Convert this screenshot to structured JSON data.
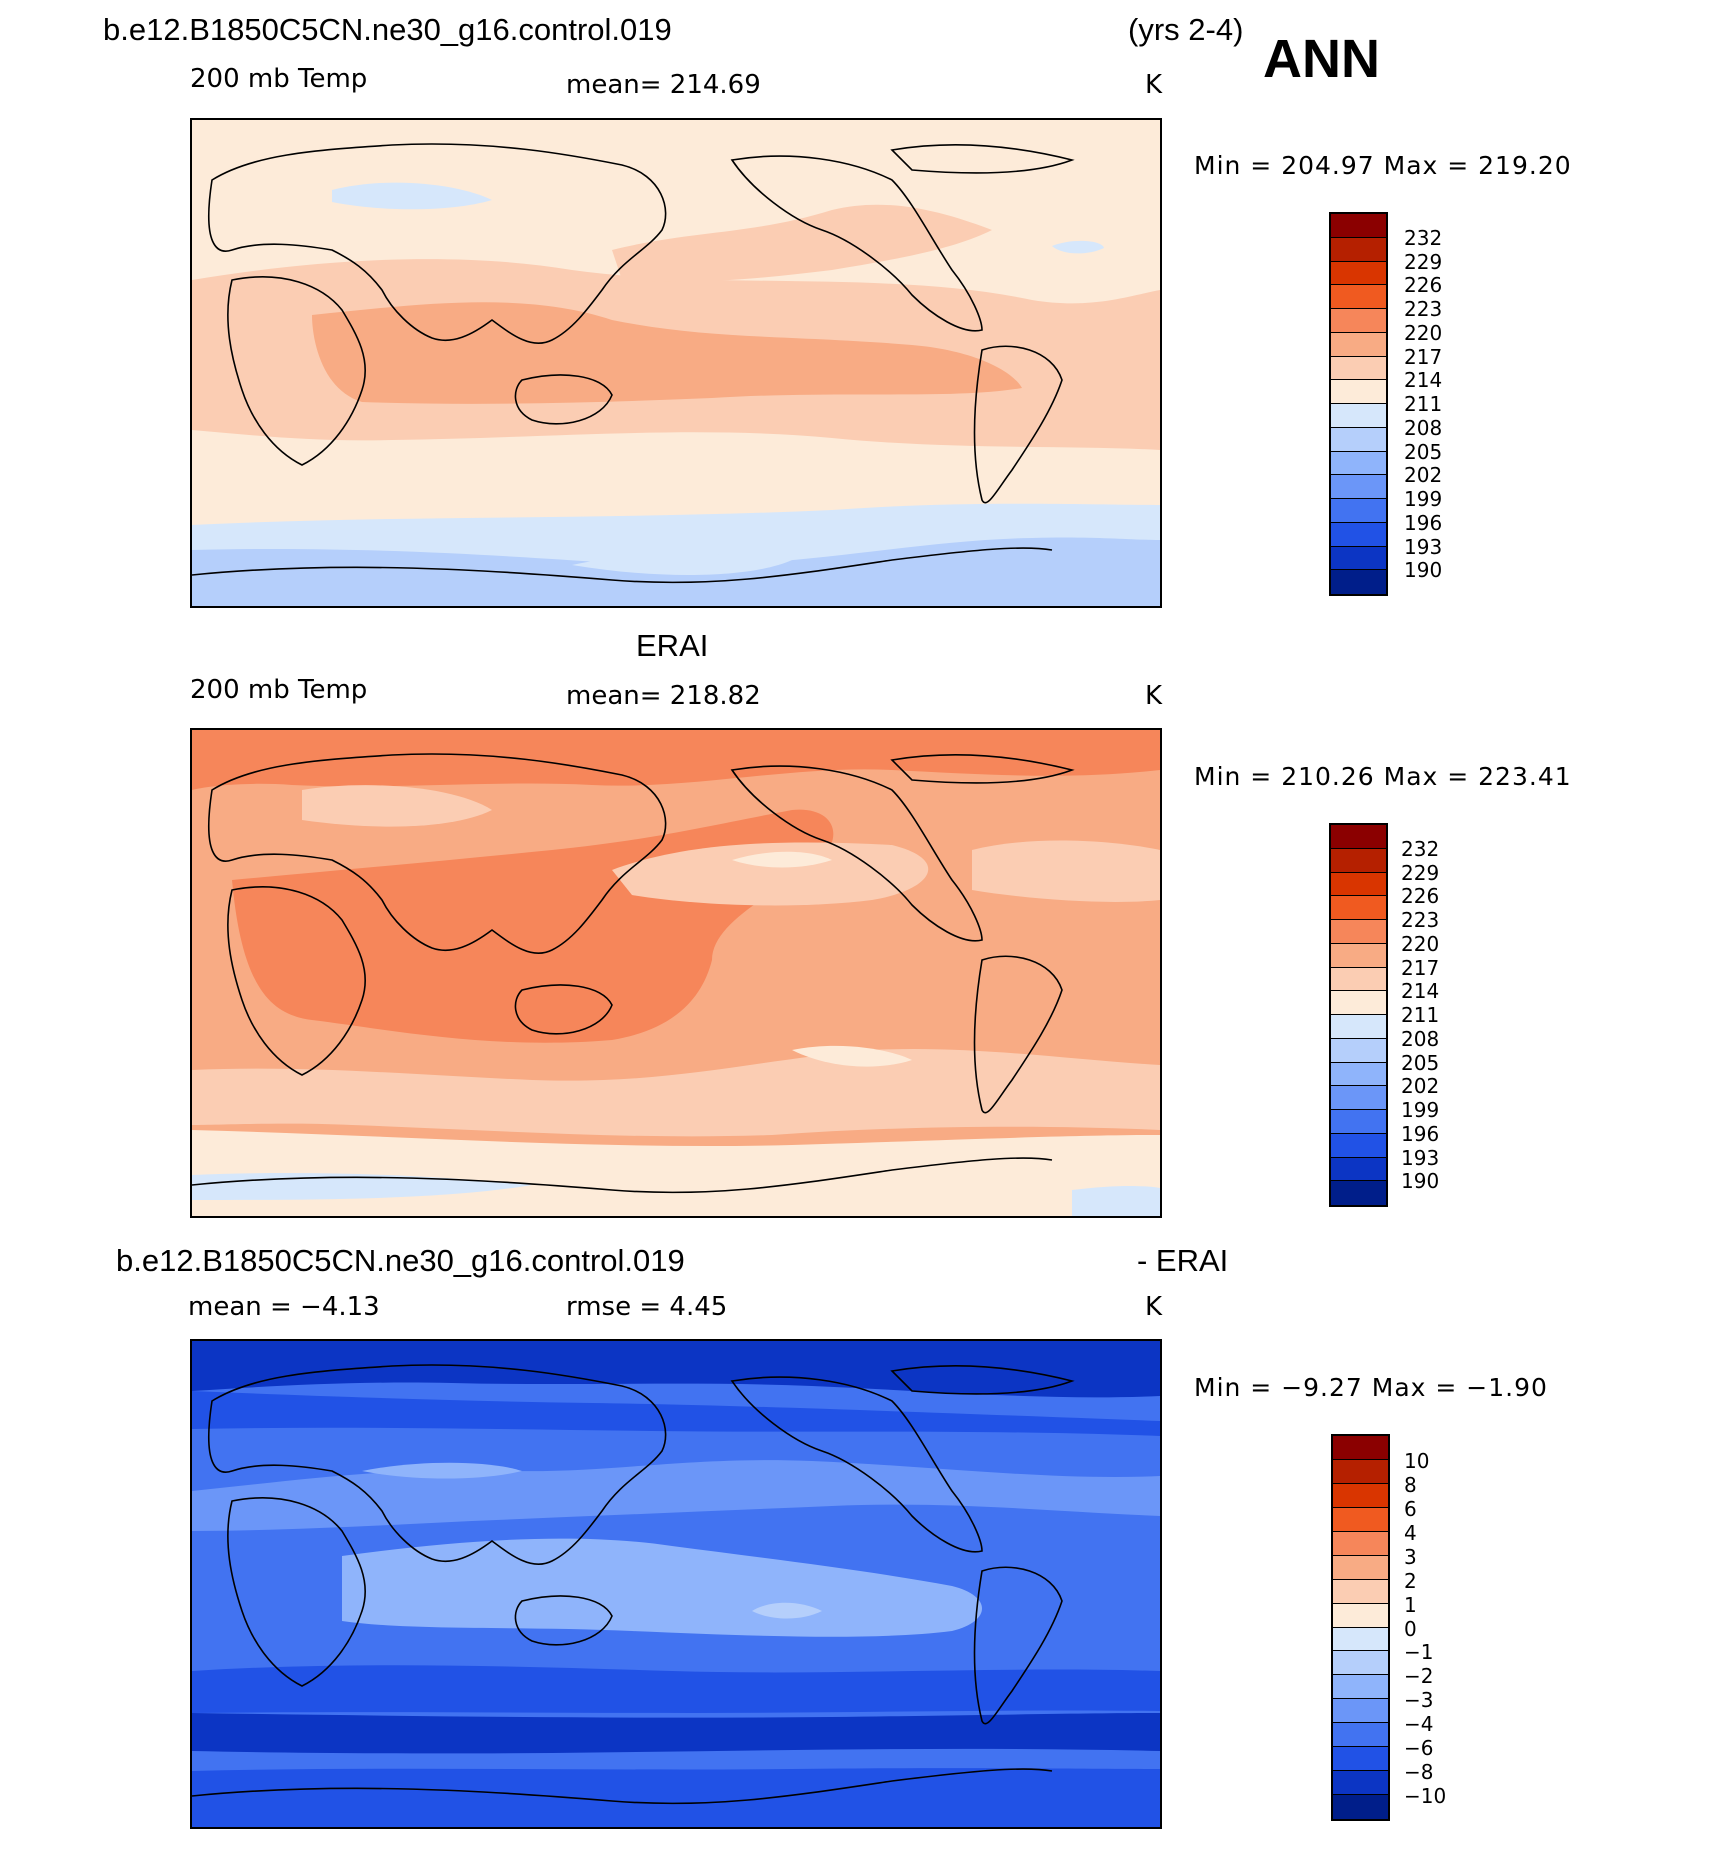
{
  "header": {
    "case_name": "b.e12.B1850C5CN.ne30_g16.control.019",
    "years": "(yrs 2-4)",
    "season": "ANN"
  },
  "panels": [
    {
      "id": "model",
      "title": "",
      "left_label": "200 mb Temp",
      "center_label": "mean=  214.69",
      "units": "K",
      "minmax": "Min  =  204.97  Max  =  219.20"
    },
    {
      "id": "obs",
      "title": "ERAI",
      "left_label": "200 mb Temp",
      "center_label": "mean=  218.82",
      "units": "K",
      "minmax": "Min  =  210.26  Max  =  223.41"
    },
    {
      "id": "diff",
      "title_left": "b.e12.B1850C5CN.ne30_g16.control.019",
      "title_right": "- ERAI",
      "left_label": "mean =    −4.13",
      "center_label": "rmse =     4.45",
      "units": "K",
      "minmax": "Min  =    −9.27  Max  =   −1.90"
    }
  ],
  "colorbar_abs": {
    "levels": [
      "232",
      "229",
      "226",
      "223",
      "220",
      "217",
      "214",
      "211",
      "208",
      "205",
      "202",
      "199",
      "196",
      "193",
      "190"
    ],
    "colors": [
      "#8b0000",
      "#b52000",
      "#d93500",
      "#f05a20",
      "#f6865a",
      "#f8ab84",
      "#fbcdb3",
      "#fdebd9",
      "#d6e7fb",
      "#b5cffb",
      "#8fb4fb",
      "#6b96f8",
      "#4273f1",
      "#2152e6",
      "#0c35c4",
      "#001e8a"
    ]
  },
  "colorbar_diff": {
    "levels": [
      "10",
      "8",
      "6",
      "4",
      "3",
      "2",
      "1",
      "0",
      "−1",
      "−2",
      "−3",
      "−4",
      "−6",
      "−8",
      "−10"
    ],
    "colors": [
      "#8b0000",
      "#b52000",
      "#d93500",
      "#f05a20",
      "#f6865a",
      "#f8ab84",
      "#fbcdb3",
      "#fdebd9",
      "#d6e7fb",
      "#b5cffb",
      "#8fb4fb",
      "#6b96f8",
      "#4273f1",
      "#2152e6",
      "#0c35c4",
      "#001e8a"
    ]
  },
  "chart_data": [
    {
      "type": "heatmap",
      "title": "",
      "variable": "200 mb Temp",
      "units": "K",
      "mean": 214.69,
      "min": 204.97,
      "max": 219.2,
      "contour_levels": [
        190,
        193,
        196,
        199,
        202,
        205,
        208,
        211,
        214,
        217,
        220,
        223,
        226,
        229,
        232
      ],
      "xlim": [
        30,
        390
      ],
      "ylim": [
        -90,
        90
      ],
      "zonal_bands": [
        {
          "lat": [
            60,
            90
          ],
          "value": 212.5
        },
        {
          "lat": [
            30,
            60
          ],
          "value": 213.5
        },
        {
          "lat": [
            -30,
            30
          ],
          "value": 217.5
        },
        {
          "lat": [
            -55,
            -30
          ],
          "value": 213.5
        },
        {
          "lat": [
            -65,
            -55
          ],
          "value": 210
        },
        {
          "lat": [
            -90,
            -65
          ],
          "value": 207
        }
      ]
    },
    {
      "type": "heatmap",
      "title": "ERAI",
      "variable": "200 mb Temp",
      "units": "K",
      "mean": 218.82,
      "min": 210.26,
      "max": 223.41,
      "contour_levels": [
        190,
        193,
        196,
        199,
        202,
        205,
        208,
        211,
        214,
        217,
        220,
        223,
        226,
        229,
        232
      ],
      "xlim": [
        30,
        390
      ],
      "ylim": [
        -90,
        90
      ],
      "zonal_bands": [
        {
          "lat": [
            65,
            90
          ],
          "value": 221
        },
        {
          "lat": [
            35,
            65
          ],
          "value": 216
        },
        {
          "lat": [
            -35,
            35
          ],
          "value": 220
        },
        {
          "lat": [
            -60,
            -35
          ],
          "value": 218
        },
        {
          "lat": [
            -75,
            -60
          ],
          "value": 213
        },
        {
          "lat": [
            -90,
            -75
          ],
          "value": 210
        }
      ]
    },
    {
      "type": "heatmap",
      "title": "- ERAI",
      "variable": "200 mb Temp",
      "units": "K",
      "mean": -4.13,
      "rmse": 4.45,
      "min": -9.27,
      "max": -1.9,
      "contour_levels": [
        -10,
        -8,
        -6,
        -4,
        -3,
        -2,
        -1,
        0,
        1,
        2,
        3,
        4,
        6,
        8,
        10
      ],
      "xlim": [
        30,
        390
      ],
      "ylim": [
        -90,
        90
      ],
      "zonal_bands": [
        {
          "lat": [
            75,
            90
          ],
          "value": -9
        },
        {
          "lat": [
            60,
            75
          ],
          "value": -7
        },
        {
          "lat": [
            40,
            60
          ],
          "value": -4.5
        },
        {
          "lat": [
            20,
            40
          ],
          "value": -3.5
        },
        {
          "lat": [
            -20,
            20
          ],
          "value": -2.5
        },
        {
          "lat": [
            -40,
            -20
          ],
          "value": -3.5
        },
        {
          "lat": [
            -50,
            -40
          ],
          "value": -5
        },
        {
          "lat": [
            -65,
            -50
          ],
          "value": -7
        },
        {
          "lat": [
            -90,
            -65
          ],
          "value": -5
        }
      ]
    }
  ]
}
